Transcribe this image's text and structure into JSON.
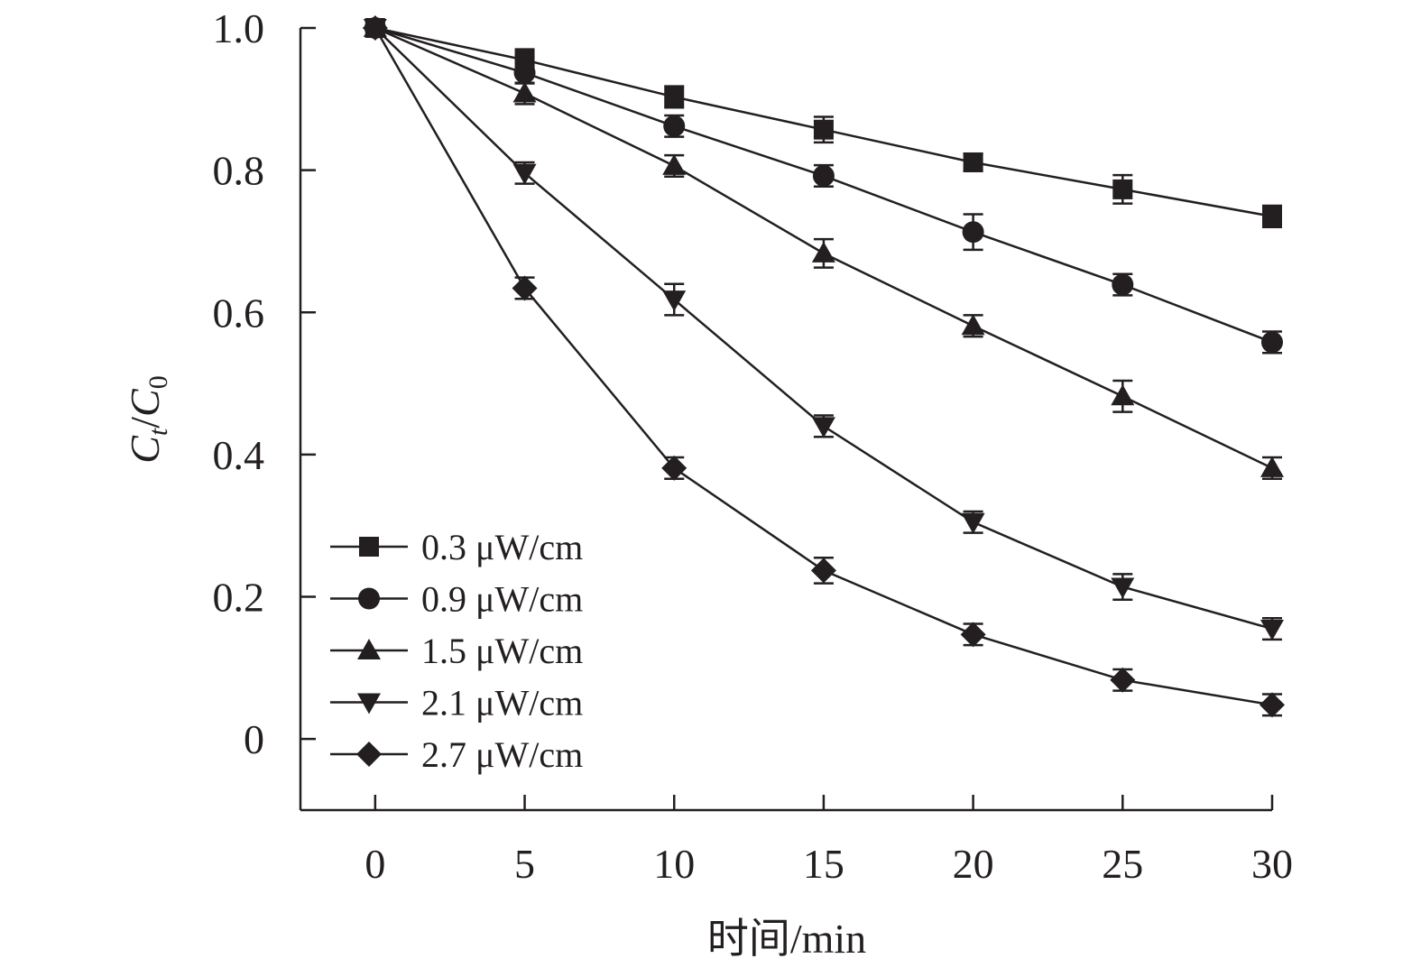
{
  "chart_data": {
    "type": "line",
    "title": "",
    "xlabel": "时间/min",
    "ylabel": {
      "c1": "C",
      "s1": "t",
      "sep": "/",
      "c2": "C",
      "s2": "0"
    },
    "xlim": [
      -2.5,
      30
    ],
    "ylim": [
      -0.1,
      1.0
    ],
    "x": [
      0,
      5,
      10,
      15,
      20,
      25,
      30
    ],
    "x_tick_labels": [
      "0",
      "5",
      "10",
      "15",
      "20",
      "25",
      "30"
    ],
    "y_ticks": [
      0,
      0.2,
      0.4,
      0.6,
      0.8,
      1.0
    ],
    "y_tick_labels": [
      "0",
      "0.2",
      "0.4",
      "0.6",
      "0.8",
      "1.0"
    ],
    "legend_position": "bottom-left",
    "grid": false,
    "series": [
      {
        "name": "0.3 μW/cm",
        "marker": "square",
        "values": [
          1.0,
          0.955,
          0.903,
          0.857,
          0.811,
          0.773,
          0.735
        ],
        "errors": [
          0,
          0.015,
          0.015,
          0.018,
          0.012,
          0.02,
          0.015
        ]
      },
      {
        "name": "0.9 μW/cm",
        "marker": "circle",
        "values": [
          1.0,
          0.937,
          0.862,
          0.792,
          0.713,
          0.639,
          0.558
        ],
        "errors": [
          0,
          0.015,
          0.015,
          0.015,
          0.025,
          0.015,
          0.015
        ]
      },
      {
        "name": "1.5 μW/cm",
        "marker": "triangle-up",
        "values": [
          1.0,
          0.908,
          0.806,
          0.683,
          0.581,
          0.482,
          0.381
        ],
        "errors": [
          0,
          0.015,
          0.015,
          0.02,
          0.015,
          0.022,
          0.015
        ]
      },
      {
        "name": "2.1 μW/cm",
        "marker": "triangle-down",
        "values": [
          1.0,
          0.796,
          0.618,
          0.44,
          0.305,
          0.214,
          0.155
        ],
        "errors": [
          0,
          0.015,
          0.022,
          0.015,
          0.015,
          0.018,
          0.015
        ]
      },
      {
        "name": "2.7 μW/cm",
        "marker": "diamond",
        "values": [
          1.0,
          0.634,
          0.381,
          0.237,
          0.147,
          0.083,
          0.048
        ],
        "errors": [
          0,
          0.015,
          0.015,
          0.018,
          0.015,
          0.015,
          0.015
        ]
      }
    ]
  }
}
